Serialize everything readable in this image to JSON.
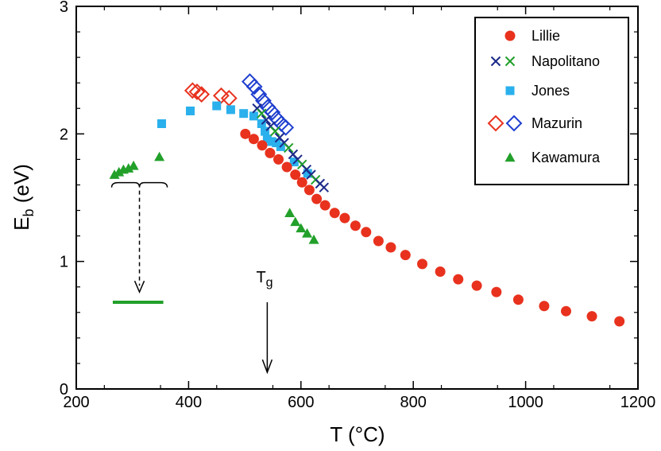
{
  "chart_data": {
    "type": "scatter",
    "title": "",
    "xlabel": "T (°C)",
    "ylabel_main": "E",
    "ylabel_sub": "b",
    "ylabel_unit": " (eV)",
    "xlim": [
      200,
      1200
    ],
    "ylim": [
      0,
      3
    ],
    "xticks": [
      200,
      400,
      600,
      800,
      1000,
      1200
    ],
    "yticks": [
      0,
      1,
      2,
      3
    ],
    "grid": false,
    "legend_position": "top-right",
    "series": [
      {
        "name": "Lillie",
        "marker": "circle",
        "color": "#e8321e",
        "points": [
          [
            501,
            2.0
          ],
          [
            516,
            1.96
          ],
          [
            531,
            1.91
          ],
          [
            545,
            1.85
          ],
          [
            560,
            1.8
          ],
          [
            575,
            1.74
          ],
          [
            590,
            1.68
          ],
          [
            602,
            1.62
          ],
          [
            615,
            1.56
          ],
          [
            628,
            1.49
          ],
          [
            643,
            1.44
          ],
          [
            660,
            1.38
          ],
          [
            678,
            1.34
          ],
          [
            697,
            1.28
          ],
          [
            716,
            1.23
          ],
          [
            738,
            1.16
          ],
          [
            760,
            1.11
          ],
          [
            786,
            1.05
          ],
          [
            816,
            0.98
          ],
          [
            848,
            0.92
          ],
          [
            880,
            0.86
          ],
          [
            913,
            0.81
          ],
          [
            948,
            0.76
          ],
          [
            987,
            0.7
          ],
          [
            1033,
            0.65
          ],
          [
            1072,
            0.61
          ],
          [
            1118,
            0.57
          ],
          [
            1167,
            0.53
          ]
        ]
      },
      {
        "name": "Napolitano",
        "marker": "x",
        "colors": [
          "#1c2a8a",
          "#22a02a"
        ],
        "points": [
          [
            522,
            2.2
          ],
          [
            530,
            2.16
          ],
          [
            538,
            2.11
          ],
          [
            546,
            2.06
          ],
          [
            554,
            2.02
          ],
          [
            562,
            1.97
          ],
          [
            570,
            1.93
          ],
          [
            578,
            1.89
          ],
          [
            586,
            1.84
          ],
          [
            594,
            1.8
          ],
          [
            602,
            1.76
          ],
          [
            610,
            1.72
          ],
          [
            618,
            1.68
          ],
          [
            626,
            1.64
          ],
          [
            634,
            1.61
          ],
          [
            641,
            1.58
          ]
        ]
      },
      {
        "name": "Jones",
        "marker": "square",
        "color": "#2ab0ec",
        "points": [
          [
            352,
            2.08
          ],
          [
            403,
            2.18
          ],
          [
            450,
            2.22
          ],
          [
            475,
            2.19
          ],
          [
            498,
            2.16
          ],
          [
            516,
            2.14
          ],
          [
            530,
            2.08
          ],
          [
            536,
            2.02
          ],
          [
            540,
            1.96
          ],
          [
            548,
            1.94
          ],
          [
            556,
            1.93
          ],
          [
            564,
            1.9
          ],
          [
            588,
            1.78
          ],
          [
            612,
            1.69
          ]
        ]
      },
      {
        "name": "Mazurin",
        "marker": "diamond",
        "colors": [
          "#e8321e",
          "#1f3fcf"
        ],
        "points_primary": [
          [
            407,
            2.34
          ],
          [
            415,
            2.33
          ],
          [
            423,
            2.31
          ],
          [
            458,
            2.3
          ],
          [
            472,
            2.28
          ]
        ],
        "points_secondary": [
          [
            509,
            2.41
          ],
          [
            517,
            2.37
          ],
          [
            525,
            2.31
          ],
          [
            533,
            2.26
          ],
          [
            541,
            2.21
          ],
          [
            549,
            2.17
          ],
          [
            557,
            2.12
          ],
          [
            565,
            2.08
          ],
          [
            573,
            2.05
          ]
        ]
      },
      {
        "name": "Kawamura",
        "marker": "triangle",
        "color": "#22a02a",
        "points": [
          [
            268,
            1.68
          ],
          [
            276,
            1.7
          ],
          [
            284,
            1.72
          ],
          [
            293,
            1.73
          ],
          [
            302,
            1.75
          ],
          [
            348,
            1.82
          ],
          [
            580,
            1.38
          ],
          [
            590,
            1.31
          ],
          [
            600,
            1.26
          ],
          [
            611,
            1.22
          ],
          [
            623,
            1.17
          ]
        ]
      }
    ],
    "annotations": {
      "tg_label": "T",
      "tg_label_sub": "g",
      "tg_x": 540,
      "tg_arrow_from_y": 0.68,
      "tg_arrow_to_y": 0.13,
      "green_bar_y": 0.68,
      "green_bar_x": [
        265,
        355
      ],
      "brace_y": 1.58,
      "brace_x": [
        263,
        362
      ],
      "brace_arrow_to_y": 0.76
    }
  }
}
